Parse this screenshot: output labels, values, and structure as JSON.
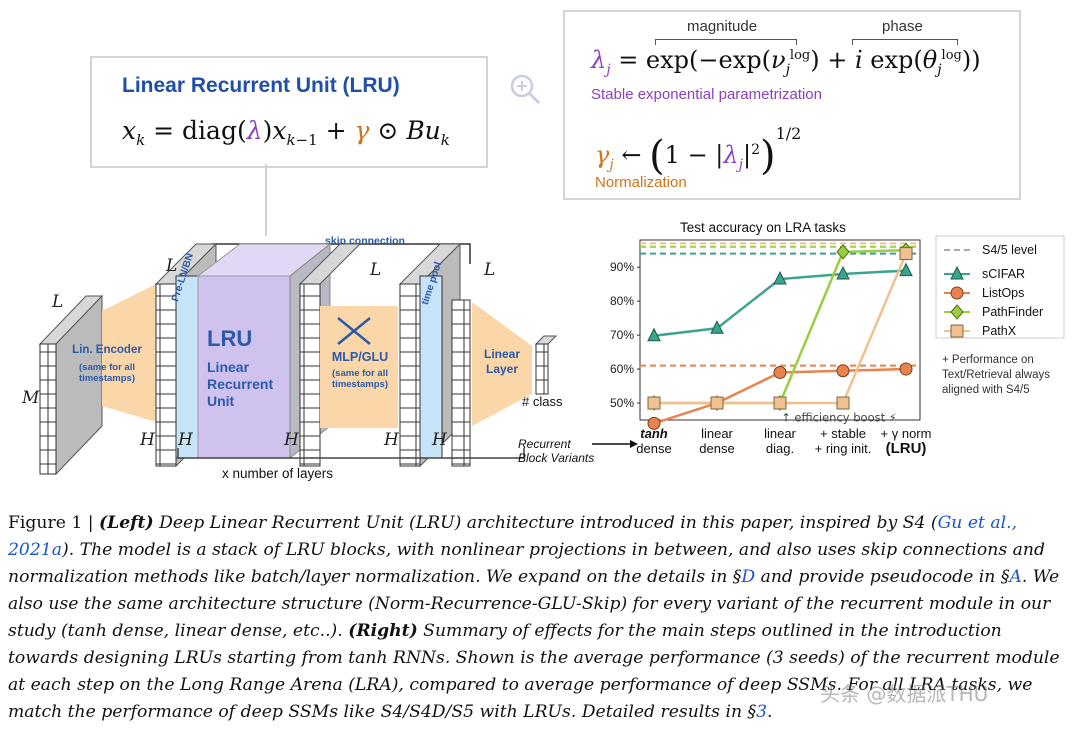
{
  "lru_box": {
    "title": "Linear Recurrent Unit (LRU)",
    "equation": "x_k = diag(λ) x_{k−1} + γ ⊙ B u_k"
  },
  "param_box": {
    "magnitude_label": "magnitude",
    "phase_label": "phase",
    "lambda_eq": "λ_j = exp(−exp(ν_j^log) + i exp(θ_j^log))",
    "stable_label": "Stable exponential parametrization",
    "gamma_eq": "γ_j ← (1 − |λ_j|²)^{1/2}",
    "norm_label": "Normalization"
  },
  "architecture": {
    "skip_label": "skip connection",
    "pre_norm_label": "Pre-LN/BN",
    "lru_short": "LRU",
    "lru_long_1": "Linear",
    "lru_long_2": "Recurrent",
    "lru_long_3": "Unit",
    "mlp_label": "MLP/GLU",
    "mlp_sub": "(same for all\ntimestamps)",
    "encoder_label": "Lin. Encoder",
    "encoder_sub": "(same for all\ntimestamps)",
    "time_pool_label": "time pool",
    "linear_layer_label": "Linear\nLayer",
    "class_label": "# class",
    "layers_label": "x number of layers",
    "dim_L": "L",
    "dim_M": "M",
    "dim_H": "H"
  },
  "chart_data": {
    "type": "line",
    "title": "Test accuracy on LRA tasks",
    "xlabel": "",
    "ylabel": "",
    "categories": [
      "tanh\ndense",
      "linear\ndense",
      "linear\ndiag.",
      "+ stable\n+ ring init.",
      "+ γ norm\n(LRU)"
    ],
    "yticks": [
      "50%",
      "60%",
      "70%",
      "80%",
      "90%"
    ],
    "ylim": [
      45,
      98
    ],
    "series": [
      {
        "name": "sCIFAR",
        "color": "#3aa58c",
        "marker": "triangle",
        "values": [
          69.8,
          72.0,
          86.5,
          88.0,
          89.0
        ],
        "s45": 94.0
      },
      {
        "name": "ListOps",
        "color": "#e8834f",
        "marker": "circle",
        "values": [
          44.0,
          50.0,
          59.0,
          59.5,
          60.0
        ],
        "s45": 61.0
      },
      {
        "name": "PathFinder",
        "color": "#9ccc3f",
        "marker": "diamond",
        "values": [
          50.0,
          50.0,
          50.0,
          94.5,
          95.0
        ],
        "s45": 96.0
      },
      {
        "name": "PathX",
        "color": "#f0c090",
        "marker": "square",
        "values": [
          50.0,
          50.0,
          50.0,
          50.0,
          94.0
        ],
        "s45": 97.0
      }
    ],
    "s45_legend": "S4/5 level",
    "grid": false,
    "legend_position": "right",
    "annotation": "↑ efficiency boost ⚡",
    "recurrent_label": "Recurrent\nBlock Variants",
    "side_note": "+ Performance on\nText/Retrieval always\naligned with S4/5"
  },
  "caption": {
    "fig": "Figure 1 | ",
    "left": "(Left)",
    "t1": " Deep Linear Recurrent Unit (LRU) architecture introduced in this paper, inspired by S4 (",
    "ref1": "Gu et al., 2021a",
    "t2": "). The model is a stack of LRU blocks, with nonlinear projections in between, and also uses skip connections and normalization methods like batch/layer normalization. We expand on the details in §",
    "refD": "D",
    "t3": " and provide pseudocode in §",
    "refA": "A",
    "t4": ". We also use the same architecture structure (Norm-Recurrence-GLU-Skip) for every variant of the recurrent module in our study (tanh dense, linear dense, etc..). ",
    "right": "(Right)",
    "t5": " Summary of effects for the main steps outlined in the introduction towards designing LRUs starting from tanh RNNs. Shown is the average performance (3 seeds) of the recurrent module at each step on the Long Range Arena (LRA), compared to average performance of deep SSMs. For all LRA tasks, we match the performance of deep SSMs like S4/S4D/S5 with LRUs. Detailed results in §",
    "ref3": "3",
    "t6": "."
  },
  "watermark": "头条 @数据派THU"
}
